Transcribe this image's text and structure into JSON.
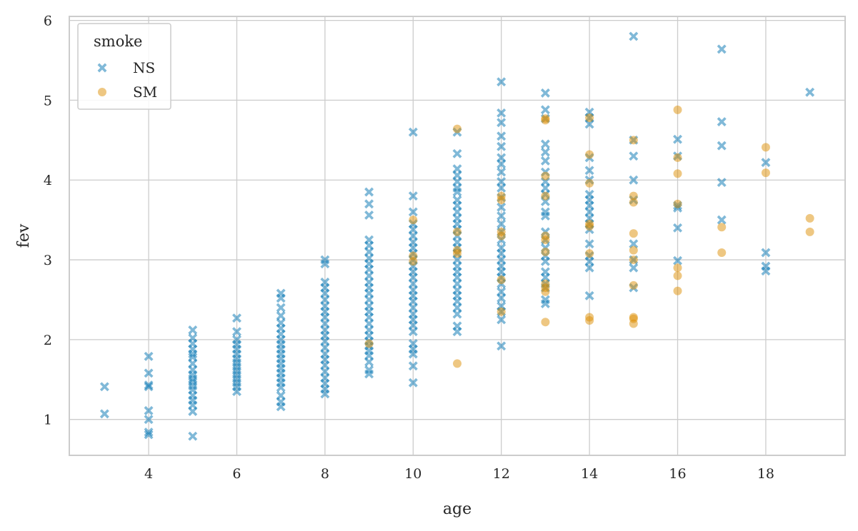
{
  "chart_data": {
    "type": "scatter",
    "title": "",
    "xlabel": "age",
    "ylabel": "fev",
    "xlim": [
      2.2,
      19.8
    ],
    "ylim": [
      0.55,
      6.05
    ],
    "xticks": [
      4,
      6,
      8,
      10,
      12,
      14,
      16,
      18
    ],
    "yticks": [
      1,
      2,
      3,
      4,
      5,
      6
    ],
    "grid": true,
    "legend": {
      "title": "smoke",
      "placement": "top-left"
    },
    "series": [
      {
        "name": "NS",
        "marker": "x",
        "color": "#0173b2",
        "points": [
          [
            3,
            1.41
          ],
          [
            3,
            1.07
          ],
          [
            4,
            1.79
          ],
          [
            4,
            1.58
          ],
          [
            4,
            1.43
          ],
          [
            4,
            1.41
          ],
          [
            4,
            1.11
          ],
          [
            4,
            1.0
          ],
          [
            4,
            0.84
          ],
          [
            4,
            0.81
          ],
          [
            5,
            2.12
          ],
          [
            5,
            2.02
          ],
          [
            5,
            1.95
          ],
          [
            5,
            1.88
          ],
          [
            5,
            1.82
          ],
          [
            5,
            1.78
          ],
          [
            5,
            1.7
          ],
          [
            5,
            1.62
          ],
          [
            5,
            1.56
          ],
          [
            5,
            1.51
          ],
          [
            5,
            1.47
          ],
          [
            5,
            1.42
          ],
          [
            5,
            1.37
          ],
          [
            5,
            1.3
          ],
          [
            5,
            1.24
          ],
          [
            5,
            1.18
          ],
          [
            5,
            1.1
          ],
          [
            5,
            0.79
          ],
          [
            6,
            2.27
          ],
          [
            6,
            2.1
          ],
          [
            6,
            2.0
          ],
          [
            6,
            1.94
          ],
          [
            6,
            1.88
          ],
          [
            6,
            1.82
          ],
          [
            6,
            1.76
          ],
          [
            6,
            1.71
          ],
          [
            6,
            1.66
          ],
          [
            6,
            1.61
          ],
          [
            6,
            1.56
          ],
          [
            6,
            1.51
          ],
          [
            6,
            1.46
          ],
          [
            6,
            1.41
          ],
          [
            6,
            1.35
          ],
          [
            7,
            2.58
          ],
          [
            7,
            2.52
          ],
          [
            7,
            2.4
          ],
          [
            7,
            2.3
          ],
          [
            7,
            2.21
          ],
          [
            7,
            2.14
          ],
          [
            7,
            2.07
          ],
          [
            7,
            2.0
          ],
          [
            7,
            1.94
          ],
          [
            7,
            1.88
          ],
          [
            7,
            1.82
          ],
          [
            7,
            1.76
          ],
          [
            7,
            1.7
          ],
          [
            7,
            1.64
          ],
          [
            7,
            1.58
          ],
          [
            7,
            1.52
          ],
          [
            7,
            1.46
          ],
          [
            7,
            1.4
          ],
          [
            7,
            1.3
          ],
          [
            7,
            1.22
          ],
          [
            7,
            1.16
          ],
          [
            8,
            3.0
          ],
          [
            8,
            2.95
          ],
          [
            8,
            2.72
          ],
          [
            8,
            2.65
          ],
          [
            8,
            2.58
          ],
          [
            8,
            2.5
          ],
          [
            8,
            2.42
          ],
          [
            8,
            2.35
          ],
          [
            8,
            2.28
          ],
          [
            8,
            2.2
          ],
          [
            8,
            2.12
          ],
          [
            8,
            2.05
          ],
          [
            8,
            1.98
          ],
          [
            8,
            1.9
          ],
          [
            8,
            1.82
          ],
          [
            8,
            1.75
          ],
          [
            8,
            1.68
          ],
          [
            8,
            1.6
          ],
          [
            8,
            1.52
          ],
          [
            8,
            1.45
          ],
          [
            8,
            1.38
          ],
          [
            8,
            1.32
          ],
          [
            9,
            3.85
          ],
          [
            9,
            3.7
          ],
          [
            9,
            3.56
          ],
          [
            9,
            3.25
          ],
          [
            9,
            3.18
          ],
          [
            9,
            3.1
          ],
          [
            9,
            3.02
          ],
          [
            9,
            2.95
          ],
          [
            9,
            2.88
          ],
          [
            9,
            2.8
          ],
          [
            9,
            2.72
          ],
          [
            9,
            2.65
          ],
          [
            9,
            2.58
          ],
          [
            9,
            2.5
          ],
          [
            9,
            2.42
          ],
          [
            9,
            2.35
          ],
          [
            9,
            2.28
          ],
          [
            9,
            2.2
          ],
          [
            9,
            2.12
          ],
          [
            9,
            2.05
          ],
          [
            9,
            1.98
          ],
          [
            9,
            1.92
          ],
          [
            9,
            1.86
          ],
          [
            9,
            1.8
          ],
          [
            9,
            1.72
          ],
          [
            9,
            1.62
          ],
          [
            9,
            1.57
          ],
          [
            10,
            4.6
          ],
          [
            10,
            3.8
          ],
          [
            10,
            3.6
          ],
          [
            10,
            3.45
          ],
          [
            10,
            3.38
          ],
          [
            10,
            3.3
          ],
          [
            10,
            3.22
          ],
          [
            10,
            3.15
          ],
          [
            10,
            3.08
          ],
          [
            10,
            3.0
          ],
          [
            10,
            2.92
          ],
          [
            10,
            2.85
          ],
          [
            10,
            2.78
          ],
          [
            10,
            2.7
          ],
          [
            10,
            2.62
          ],
          [
            10,
            2.55
          ],
          [
            10,
            2.48
          ],
          [
            10,
            2.4
          ],
          [
            10,
            2.32
          ],
          [
            10,
            2.25
          ],
          [
            10,
            2.18
          ],
          [
            10,
            2.1
          ],
          [
            10,
            1.95
          ],
          [
            10,
            1.88
          ],
          [
            10,
            1.82
          ],
          [
            10,
            1.67
          ],
          [
            10,
            1.46
          ],
          [
            11,
            4.6
          ],
          [
            11,
            4.33
          ],
          [
            11,
            4.14
          ],
          [
            11,
            4.06
          ],
          [
            11,
            3.98
          ],
          [
            11,
            3.9
          ],
          [
            11,
            3.85
          ],
          [
            11,
            3.75
          ],
          [
            11,
            3.68
          ],
          [
            11,
            3.6
          ],
          [
            11,
            3.52
          ],
          [
            11,
            3.45
          ],
          [
            11,
            3.38
          ],
          [
            11,
            3.3
          ],
          [
            11,
            3.22
          ],
          [
            11,
            3.15
          ],
          [
            11,
            3.08
          ],
          [
            11,
            3.0
          ],
          [
            11,
            2.92
          ],
          [
            11,
            2.85
          ],
          [
            11,
            2.78
          ],
          [
            11,
            2.7
          ],
          [
            11,
            2.62
          ],
          [
            11,
            2.55
          ],
          [
            11,
            2.48
          ],
          [
            11,
            2.4
          ],
          [
            11,
            2.32
          ],
          [
            11,
            2.17
          ],
          [
            11,
            2.1
          ],
          [
            12,
            5.23
          ],
          [
            12,
            4.84
          ],
          [
            12,
            4.72
          ],
          [
            12,
            4.55
          ],
          [
            12,
            4.42
          ],
          [
            12,
            4.28
          ],
          [
            12,
            4.2
          ],
          [
            12,
            4.1
          ],
          [
            12,
            3.98
          ],
          [
            12,
            3.9
          ],
          [
            12,
            3.78
          ],
          [
            12,
            3.66
          ],
          [
            12,
            3.55
          ],
          [
            12,
            3.45
          ],
          [
            12,
            3.35
          ],
          [
            12,
            3.25
          ],
          [
            12,
            3.15
          ],
          [
            12,
            3.08
          ],
          [
            12,
            3.0
          ],
          [
            12,
            2.92
          ],
          [
            12,
            2.85
          ],
          [
            12,
            2.78
          ],
          [
            12,
            2.7
          ],
          [
            12,
            2.6
          ],
          [
            12,
            2.52
          ],
          [
            12,
            2.42
          ],
          [
            12,
            2.35
          ],
          [
            12,
            2.25
          ],
          [
            12,
            1.92
          ],
          [
            13,
            5.09
          ],
          [
            13,
            4.88
          ],
          [
            13,
            4.77
          ],
          [
            13,
            4.45
          ],
          [
            13,
            4.35
          ],
          [
            13,
            4.24
          ],
          [
            13,
            4.1
          ],
          [
            13,
            3.98
          ],
          [
            13,
            3.9
          ],
          [
            13,
            3.82
          ],
          [
            13,
            3.73
          ],
          [
            13,
            3.6
          ],
          [
            13,
            3.55
          ],
          [
            13,
            3.35
          ],
          [
            13,
            3.25
          ],
          [
            13,
            3.15
          ],
          [
            13,
            3.05
          ],
          [
            13,
            2.98
          ],
          [
            13,
            2.85
          ],
          [
            13,
            2.78
          ],
          [
            13,
            2.7
          ],
          [
            13,
            2.65
          ],
          [
            13,
            2.5
          ],
          [
            13,
            2.45
          ],
          [
            14,
            4.85
          ],
          [
            14,
            4.78
          ],
          [
            14,
            4.7
          ],
          [
            14,
            4.28
          ],
          [
            14,
            4.12
          ],
          [
            14,
            4.0
          ],
          [
            14,
            3.82
          ],
          [
            14,
            3.75
          ],
          [
            14,
            3.68
          ],
          [
            14,
            3.6
          ],
          [
            14,
            3.52
          ],
          [
            14,
            3.45
          ],
          [
            14,
            3.38
          ],
          [
            14,
            3.2
          ],
          [
            14,
            3.05
          ],
          [
            14,
            2.98
          ],
          [
            14,
            2.9
          ],
          [
            14,
            2.55
          ],
          [
            15,
            5.8
          ],
          [
            15,
            4.5
          ],
          [
            15,
            4.3
          ],
          [
            15,
            4.0
          ],
          [
            15,
            3.75
          ],
          [
            15,
            3.2
          ],
          [
            15,
            3.0
          ],
          [
            15,
            2.9
          ],
          [
            15,
            2.65
          ],
          [
            16,
            4.51
          ],
          [
            16,
            4.3
          ],
          [
            16,
            3.68
          ],
          [
            16,
            3.65
          ],
          [
            16,
            3.4
          ],
          [
            16,
            2.99
          ],
          [
            17,
            5.64
          ],
          [
            17,
            4.73
          ],
          [
            17,
            4.43
          ],
          [
            17,
            3.97
          ],
          [
            17,
            3.5
          ],
          [
            18,
            4.22
          ],
          [
            18,
            3.09
          ],
          [
            18,
            2.92
          ],
          [
            18,
            2.86
          ],
          [
            19,
            5.1
          ]
        ]
      },
      {
        "name": "SM",
        "marker": "o",
        "color": "#de8f05",
        "points": [
          [
            9,
            1.95
          ],
          [
            10,
            3.5
          ],
          [
            10,
            3.05
          ],
          [
            10,
            2.98
          ],
          [
            11,
            4.64
          ],
          [
            11,
            3.35
          ],
          [
            11,
            3.12
          ],
          [
            11,
            3.08
          ],
          [
            11,
            1.7
          ],
          [
            12,
            3.8
          ],
          [
            12,
            3.75
          ],
          [
            12,
            3.35
          ],
          [
            12,
            3.3
          ],
          [
            12,
            2.75
          ],
          [
            12,
            2.35
          ],
          [
            13,
            4.77
          ],
          [
            13,
            4.75
          ],
          [
            13,
            4.05
          ],
          [
            13,
            3.8
          ],
          [
            13,
            3.3
          ],
          [
            13,
            3.25
          ],
          [
            13,
            3.1
          ],
          [
            13,
            2.7
          ],
          [
            13,
            2.65
          ],
          [
            13,
            2.6
          ],
          [
            13,
            2.22
          ],
          [
            14,
            4.78
          ],
          [
            14,
            4.32
          ],
          [
            14,
            3.96
          ],
          [
            14,
            3.45
          ],
          [
            14,
            3.42
          ],
          [
            14,
            3.08
          ],
          [
            14,
            2.28
          ],
          [
            14,
            2.24
          ],
          [
            15,
            4.5
          ],
          [
            15,
            3.8
          ],
          [
            15,
            3.72
          ],
          [
            15,
            3.33
          ],
          [
            15,
            3.12
          ],
          [
            15,
            3.0
          ],
          [
            15,
            2.68
          ],
          [
            15,
            2.28
          ],
          [
            15,
            2.26
          ],
          [
            15,
            2.2
          ],
          [
            16,
            4.88
          ],
          [
            16,
            4.28
          ],
          [
            16,
            4.08
          ],
          [
            16,
            3.7
          ],
          [
            16,
            2.9
          ],
          [
            16,
            2.8
          ],
          [
            16,
            2.61
          ],
          [
            17,
            3.41
          ],
          [
            17,
            3.09
          ],
          [
            18,
            4.41
          ],
          [
            18,
            4.09
          ],
          [
            19,
            3.52
          ],
          [
            19,
            3.35
          ]
        ]
      }
    ]
  }
}
